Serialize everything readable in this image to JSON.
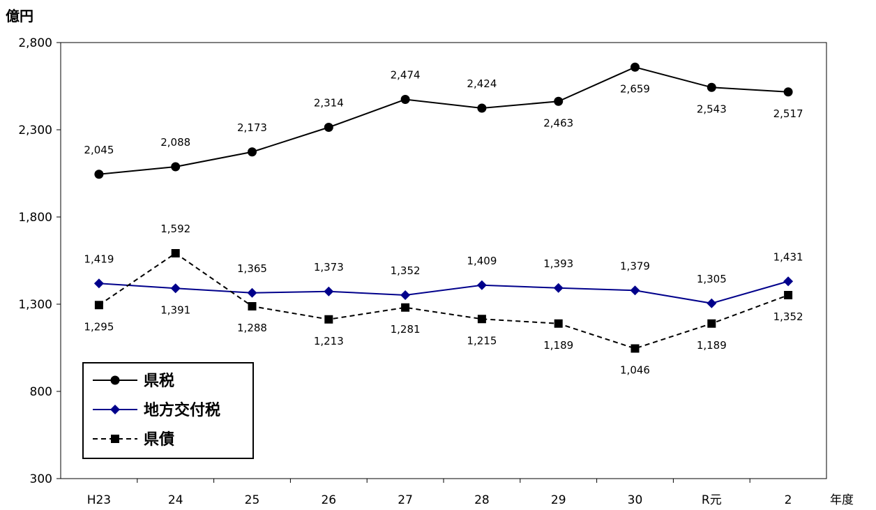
{
  "chart_data": {
    "type": "line",
    "y_unit_label": "億円",
    "x_unit_label": "年度",
    "categories": [
      "H23",
      "24",
      "25",
      "26",
      "27",
      "28",
      "29",
      "30",
      "R元",
      "2"
    ],
    "ylim": [
      300,
      2800
    ],
    "yticks": [
      300,
      800,
      1300,
      1800,
      2300,
      2800
    ],
    "ytick_labels": [
      "300",
      "800",
      "1,300",
      "1,800",
      "2,300",
      "2,800"
    ],
    "grid": false,
    "legend_position": "bottom-left",
    "series": [
      {
        "name": "県税",
        "color": "#000000",
        "marker": "circle",
        "dash": "solid",
        "values": [
          2045,
          2088,
          2173,
          2314,
          2474,
          2424,
          2463,
          2659,
          2543,
          2517
        ],
        "labels": [
          "2,045",
          "2,088",
          "2,173",
          "2,314",
          "2,474",
          "2,424",
          "2,463",
          "2,659",
          "2,543",
          "2,517"
        ],
        "label_pos": [
          "above",
          "above",
          "above",
          "above",
          "above",
          "above",
          "below",
          "below",
          "below",
          "below"
        ]
      },
      {
        "name": "地方交付税",
        "color": "#00008b",
        "marker": "diamond",
        "dash": "solid",
        "values": [
          1419,
          1391,
          1365,
          1373,
          1352,
          1409,
          1393,
          1379,
          1305,
          1431
        ],
        "labels": [
          "1,419",
          "1,391",
          "1,365",
          "1,373",
          "1,352",
          "1,409",
          "1,393",
          "1,379",
          "1,305",
          "1,431"
        ],
        "label_pos": [
          "above",
          "below",
          "above",
          "above",
          "above",
          "above",
          "above",
          "above",
          "above",
          "above"
        ]
      },
      {
        "name": "県債",
        "color": "#000000",
        "marker": "square",
        "dash": "dashed",
        "values": [
          1295,
          1592,
          1288,
          1213,
          1281,
          1215,
          1189,
          1046,
          1189,
          1352
        ],
        "labels": [
          "1,295",
          "1,592",
          "1,288",
          "1,213",
          "1,281",
          "1,215",
          "1,189",
          "1,046",
          "1,189",
          "1,352"
        ],
        "label_pos": [
          "below",
          "above",
          "below",
          "below",
          "below",
          "below",
          "below",
          "below",
          "below",
          "below"
        ]
      }
    ]
  }
}
